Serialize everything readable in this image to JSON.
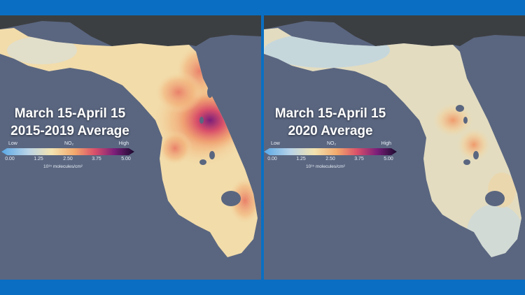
{
  "panels": [
    {
      "title_line1": "March 15-April 15",
      "title_line2": "2015-2019 Average"
    },
    {
      "title_line1": "March 15-April 15",
      "title_line2": "2020 Average"
    }
  ],
  "legend": {
    "low_label": "Low",
    "high_label": "High",
    "pollutant_label": "NO₂",
    "ticks": [
      "0.00",
      "1.25",
      "2.50",
      "3.75",
      "5.00"
    ],
    "unit": "10¹⁵ molecules/cm²",
    "scale_min": 0.0,
    "scale_max": 5.0,
    "colors": [
      "#5aa8e6",
      "#b9d4e8",
      "#f3e3b0",
      "#f2a86c",
      "#d9506a",
      "#7b1f7a",
      "#1a0a2e"
    ]
  },
  "colors": {
    "frame_blue": "#0a6fc2",
    "ocean": "#5a6680",
    "land_dark": "#3c3f42"
  }
}
